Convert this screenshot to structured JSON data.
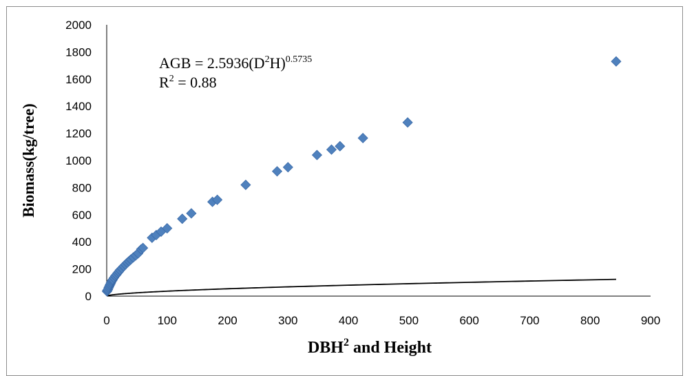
{
  "chart_data": {
    "type": "scatter",
    "xlabel_main": "DBH",
    "xlabel_sup": "2",
    "xlabel_rest": " and Height",
    "ylabel": "Biomass(kg/tree)",
    "xlim": [
      0,
      900
    ],
    "ylim": [
      0,
      2000
    ],
    "x_ticks": [
      "0",
      "100",
      "200",
      "300",
      "400",
      "500",
      "600",
      "700",
      "800",
      "900"
    ],
    "y_ticks": [
      "0",
      "200",
      "400",
      "600",
      "800",
      "1000",
      "1200",
      "1400",
      "1600",
      "1800",
      "2000"
    ],
    "equation": {
      "prefix": "AGB = 2.5936(D",
      "sup1": "2",
      "middle": "H)",
      "sup2": "0.5735"
    },
    "r_squared": {
      "prefix": "R",
      "sup": "2",
      "suffix": " = 0.88"
    },
    "trendline": {
      "a": 2.5936,
      "b": 0.5735
    },
    "marker_color": "#4f81bd",
    "trendline_color": "#000000",
    "points": [
      {
        "x": 0.5,
        "y": 35
      },
      {
        "x": 1,
        "y": 42
      },
      {
        "x": 2,
        "y": 48
      },
      {
        "x": 3,
        "y": 60
      },
      {
        "x": 4,
        "y": 70
      },
      {
        "x": 5,
        "y": 80
      },
      {
        "x": 6,
        "y": 88
      },
      {
        "x": 7,
        "y": 98
      },
      {
        "x": 8,
        "y": 108
      },
      {
        "x": 9,
        "y": 115
      },
      {
        "x": 10,
        "y": 122
      },
      {
        "x": 12,
        "y": 135
      },
      {
        "x": 14,
        "y": 148
      },
      {
        "x": 16,
        "y": 158
      },
      {
        "x": 18,
        "y": 170
      },
      {
        "x": 20,
        "y": 180
      },
      {
        "x": 22,
        "y": 192
      },
      {
        "x": 25,
        "y": 205
      },
      {
        "x": 28,
        "y": 220
      },
      {
        "x": 31,
        "y": 233
      },
      {
        "x": 34,
        "y": 246
      },
      {
        "x": 37,
        "y": 258
      },
      {
        "x": 40,
        "y": 270
      },
      {
        "x": 44,
        "y": 285
      },
      {
        "x": 48,
        "y": 300
      },
      {
        "x": 52,
        "y": 315
      },
      {
        "x": 57,
        "y": 345
      },
      {
        "x": 60,
        "y": 355
      },
      {
        "x": 75,
        "y": 430
      },
      {
        "x": 82,
        "y": 450
      },
      {
        "x": 90,
        "y": 475
      },
      {
        "x": 100,
        "y": 500
      },
      {
        "x": 125,
        "y": 570
      },
      {
        "x": 140,
        "y": 610
      },
      {
        "x": 175,
        "y": 695
      },
      {
        "x": 183,
        "y": 710
      },
      {
        "x": 230,
        "y": 820
      },
      {
        "x": 282,
        "y": 920
      },
      {
        "x": 300,
        "y": 950
      },
      {
        "x": 348,
        "y": 1040
      },
      {
        "x": 372,
        "y": 1080
      },
      {
        "x": 386,
        "y": 1105
      },
      {
        "x": 424,
        "y": 1165
      },
      {
        "x": 498,
        "y": 1280
      },
      {
        "x": 843,
        "y": 1730
      }
    ]
  }
}
